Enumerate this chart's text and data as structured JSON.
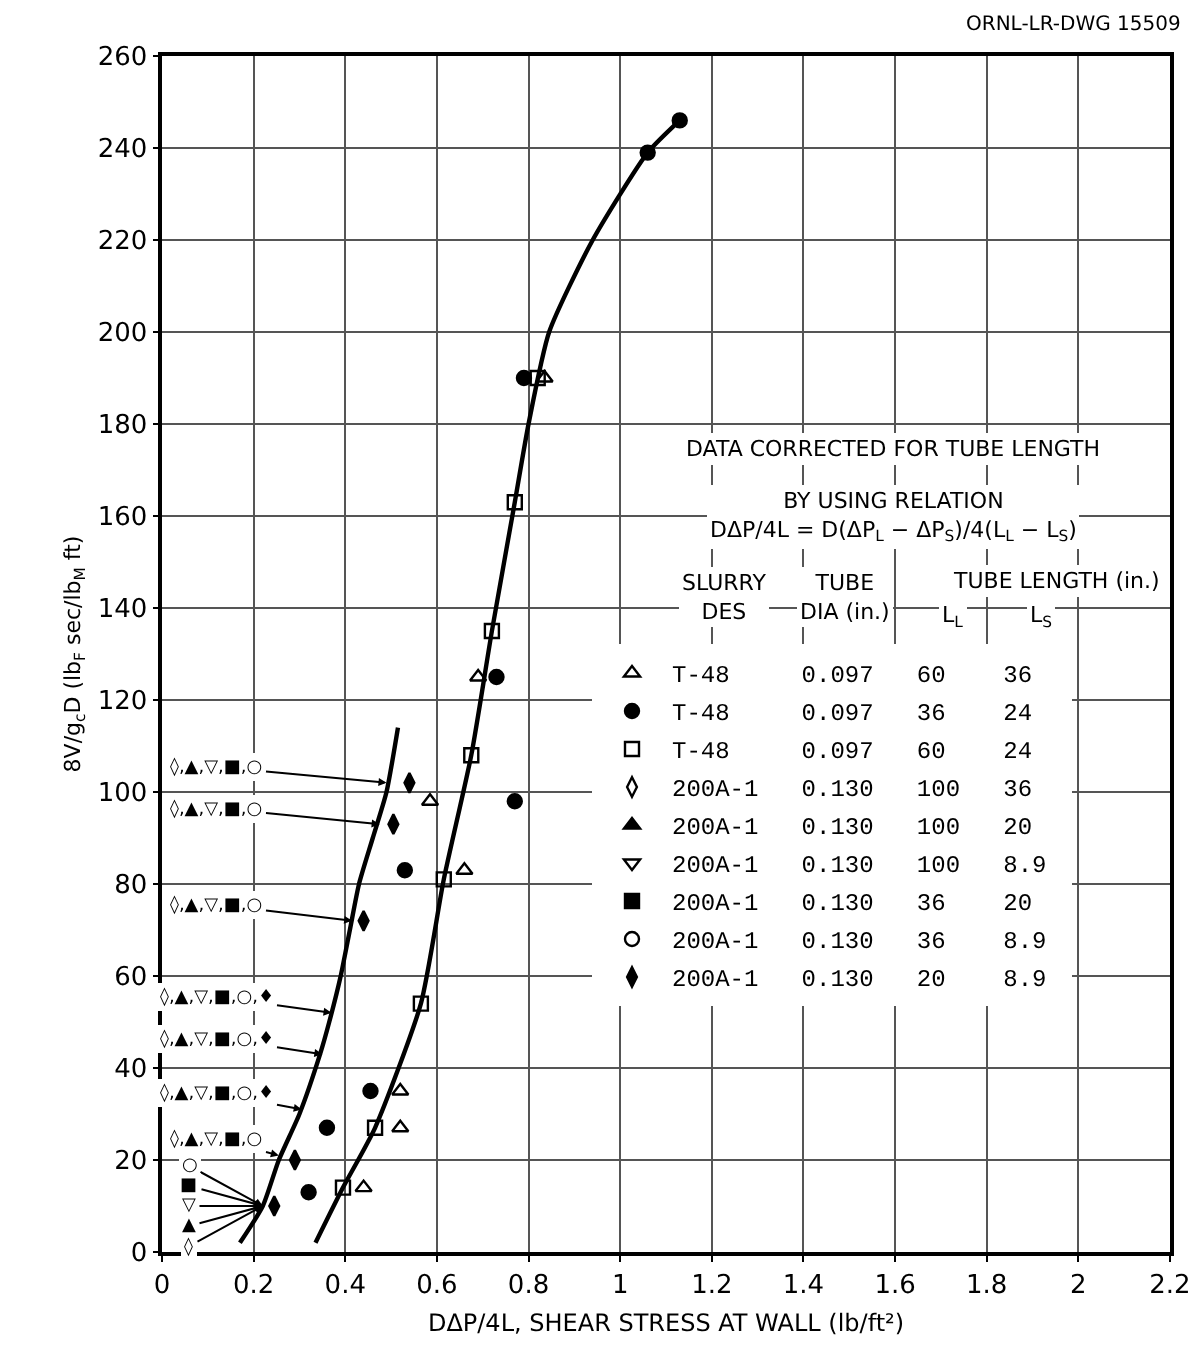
{
  "chart_data": {
    "type": "scatter",
    "xlabel": "DΔP/4L, SHEAR STRESS AT WALL (lb/ft²)",
    "ylabel": "8V/g$_{c}$D (lb$_{F}$ sec/lb$_{M}$ ft)",
    "xlim": [
      0,
      2.2
    ],
    "xticks": [
      0,
      0.2,
      0.4,
      0.6,
      0.8,
      1.0,
      1.2,
      1.4,
      1.6,
      1.8,
      2.0,
      2.2
    ],
    "ylim": [
      0,
      260
    ],
    "yticks": [
      0,
      20,
      40,
      60,
      80,
      100,
      120,
      140,
      160,
      180,
      200,
      220,
      240,
      260
    ],
    "grid": true,
    "legend": "right",
    "series": [
      {
        "name": "T-48 0.097 60 36",
        "color": "#000000",
        "marker": "triangle-up-open",
        "x": [
          0.835,
          0.69,
          0.66,
          0.585,
          0.52,
          0.52,
          0.44
        ],
        "values": [
          190,
          125,
          83,
          98,
          35,
          27,
          14
        ]
      },
      {
        "name": "T-48 0.097 36 24",
        "color": "#000000",
        "marker": "circle",
        "x": [
          1.06,
          1.13,
          0.79,
          0.73,
          0.77,
          0.53,
          0.455,
          0.36,
          0.32
        ],
        "values": [
          239,
          246,
          190,
          125,
          98,
          83,
          35,
          27,
          13
        ]
      },
      {
        "name": "T-48 0.097 60 24",
        "color": "#000000",
        "marker": "square-open",
        "x": [
          0.82,
          0.77,
          0.72,
          0.675,
          0.615,
          0.565,
          0.465,
          0.395
        ],
        "values": [
          190,
          163,
          135,
          108,
          81,
          54,
          27,
          14
        ]
      },
      {
        "name": "200A-1 0.130 100 36",
        "color": "#000000",
        "marker": "diamond-tall-open"
      },
      {
        "name": "200A-1 0.130 100 20",
        "color": "#000000",
        "marker": "triangle-up"
      },
      {
        "name": "200A-1 0.130 100 8.9",
        "color": "#000000",
        "marker": "triangle-down-open"
      },
      {
        "name": "200A-1 0.130 36 20",
        "color": "#000000",
        "marker": "square"
      },
      {
        "name": "200A-1 0.130 36 8.9",
        "color": "#000000",
        "marker": "circle-open"
      },
      {
        "name": "200A-1 0.130 20 8.9",
        "color": "#000000",
        "marker": "diamond-tall",
        "x": [
          0.54,
          0.505,
          0.44,
          0.29,
          0.245
        ],
        "values": [
          102,
          93,
          72,
          20,
          10
        ]
      },
      {
        "type": "line",
        "color": "#000000",
        "marker": "none",
        "x": [
          0.17,
          0.22,
          0.255,
          0.3,
          0.345,
          0.365,
          0.39,
          0.41,
          0.43,
          0.46,
          0.49,
          0.515
        ],
        "values": [
          2,
          10,
          20,
          30,
          43,
          50,
          60,
          70,
          80,
          90,
          100,
          114
        ]
      },
      {
        "type": "line",
        "color": "#000000",
        "marker": "none",
        "x": [
          0.335,
          0.395,
          0.465,
          0.565,
          0.615,
          0.675,
          0.72,
          0.77,
          0.8,
          0.845,
          0.94,
          1.06,
          1.13
        ],
        "values": [
          2,
          14,
          27,
          54,
          81,
          108,
          135,
          163,
          180,
          200,
          220,
          239,
          246
        ]
      }
    ],
    "annotations": [
      "ORNL-LR-DWG 15509",
      "DATA CORRECTED FOR TUBE LENGTH",
      "BY USING RELATION\nDΔP/4L = D(ΔP$_{L}$ − ΔP$_{S}$)/4(L$_{L}$ − L$_{S}$)",
      "SLURRY\nDES",
      "TUBE\nDIA (in.)",
      "TUBE LENGTH (in.)",
      "L$_{L}$",
      "L$_{S}$",
      {
        "text": "◊,▲,▽,■,○",
        "x": 0.49,
        "y": 102
      },
      {
        "text": "◊,▲,▽,■,○",
        "x": 0.475,
        "y": 93
      },
      {
        "text": "◊,▲,▽,■,○",
        "x": 0.415,
        "y": 72
      },
      {
        "text": "◊,▲,▽,■,○,♦",
        "x": 0.37,
        "y": 52
      },
      {
        "text": "◊,▲,▽,■,○,♦",
        "x": 0.35,
        "y": 43
      },
      {
        "text": "◊,▲,▽,■,○,♦",
        "x": 0.305,
        "y": 31
      },
      {
        "text": "◊,▲,▽,■,○",
        "x": 0.255,
        "y": 21
      },
      {
        "text": "○",
        "x": 0.22,
        "y": 10
      },
      {
        "text": "■",
        "x": 0.22,
        "y": 10
      },
      {
        "text": "▽",
        "x": 0.22,
        "y": 10
      },
      {
        "text": "▲",
        "x": 0.22,
        "y": 10
      },
      {
        "text": "◊",
        "x": 0.22,
        "y": 10
      }
    ]
  }
}
